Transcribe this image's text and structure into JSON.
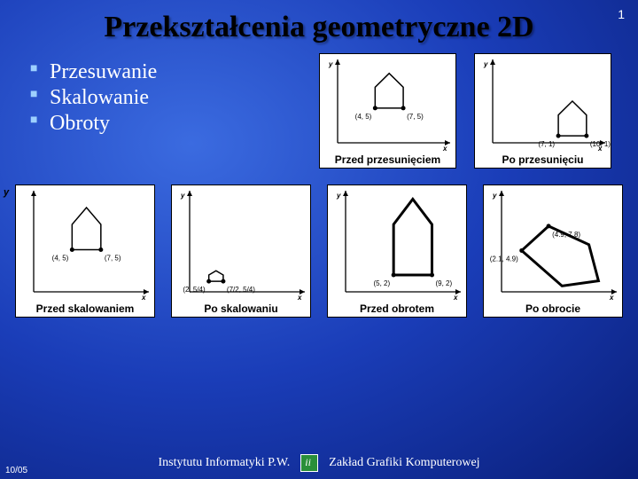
{
  "page_number": "1",
  "title": "Przekształcenia geometryczne 2D",
  "bullets": [
    "Przesuwanie",
    "Skalowanie",
    "Obroty"
  ],
  "figures": {
    "top": [
      {
        "caption": "Przed przesunięciem",
        "points": [
          [
            4,
            5
          ],
          [
            7,
            5
          ]
        ],
        "point_labels": [
          "(4, 5)",
          "(7, 5)"
        ],
        "house": [
          [
            4,
            5
          ],
          [
            4,
            8
          ],
          [
            5.5,
            10
          ],
          [
            7,
            8
          ],
          [
            7,
            5
          ]
        ],
        "thick": false
      },
      {
        "caption": "Po przesunięciu",
        "points": [
          [
            7,
            1
          ],
          [
            10,
            1
          ]
        ],
        "point_labels": [
          "(7, 1)",
          "(10, 1)"
        ],
        "house": [
          [
            7,
            1
          ],
          [
            7,
            4
          ],
          [
            8.5,
            6
          ],
          [
            10,
            4
          ],
          [
            10,
            1
          ]
        ],
        "thick": false
      }
    ],
    "bottom": [
      {
        "caption": "Przed skalowaniem",
        "points": [
          [
            4,
            5
          ],
          [
            7,
            5
          ]
        ],
        "point_labels": [
          "(4, 5)",
          "(7, 5)"
        ],
        "house": [
          [
            4,
            5
          ],
          [
            4,
            8
          ],
          [
            5.5,
            10
          ],
          [
            7,
            8
          ],
          [
            7,
            5
          ]
        ],
        "thick": false,
        "outer_y_label": true
      },
      {
        "caption": "Po skalowaniu",
        "points": [
          [
            2,
            1.25
          ],
          [
            3.5,
            1.25
          ]
        ],
        "point_labels": [
          "(2, 5/4)",
          "(7/2, 5/4)"
        ],
        "house": [
          [
            2,
            1.25
          ],
          [
            2,
            2
          ],
          [
            2.75,
            2.5
          ],
          [
            3.5,
            2
          ],
          [
            3.5,
            1.25
          ]
        ],
        "thick": false
      },
      {
        "caption": "Przed obrotem",
        "points": [
          [
            5,
            2
          ],
          [
            9,
            2
          ]
        ],
        "point_labels": [
          "(5, 2)",
          "(9, 2)"
        ],
        "house": [
          [
            5,
            2
          ],
          [
            5,
            8
          ],
          [
            7,
            11
          ],
          [
            9,
            8
          ],
          [
            9,
            2
          ]
        ],
        "thick": true
      },
      {
        "caption": "Po obrocie",
        "points": [
          [
            2.1,
            4.9
          ],
          [
            4.9,
            7.8
          ]
        ],
        "point_labels": [
          "(2.1, 4.9)",
          "(4.9, 7.8)"
        ],
        "house_rot": [
          [
            2.1,
            4.9
          ],
          [
            6.3,
            0.7
          ],
          [
            10.1,
            1.3
          ],
          [
            9.1,
            5.6
          ],
          [
            4.9,
            7.8
          ]
        ],
        "thick": true
      }
    ]
  },
  "footer": {
    "left": "Instytutu Informatyki P.W.",
    "right": "Zakład Grafiki Komputerowej",
    "date": "10/05"
  },
  "colors": {
    "bg_inner": "#3b6be0",
    "bg_outer": "#0a1f7a",
    "text_light": "#ffffff",
    "text_dark": "#000000",
    "bullet_marker": "#9dd0ff",
    "fig_bg": "#ffffff",
    "logo_bg": "#2a8f3a"
  }
}
